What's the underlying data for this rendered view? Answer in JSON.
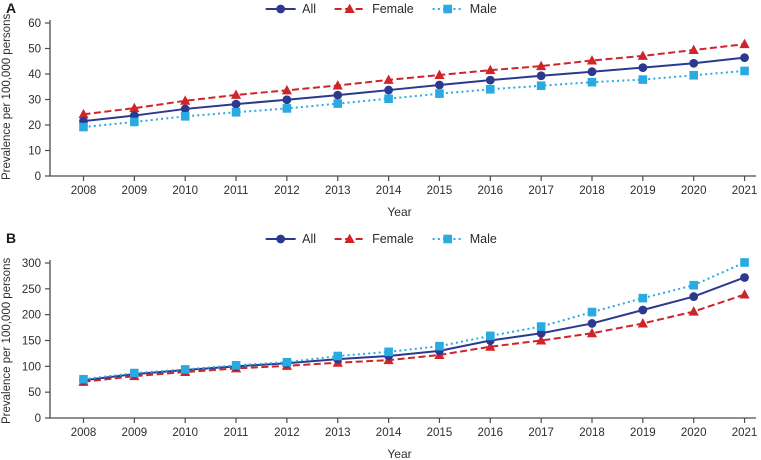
{
  "figure_colors": {
    "axis": "#4c4c4e",
    "tick_text": "#2e2e30",
    "background": "#ffffff"
  },
  "chart_data": [
    {
      "panel": "A",
      "type": "line",
      "title": "",
      "xlabel": "Year",
      "ylabel": "Prevalence per 100,000 persons",
      "categories": [
        "2008",
        "2009",
        "2010",
        "2011",
        "2012",
        "2013",
        "2014",
        "2015",
        "2016",
        "2017",
        "2018",
        "2019",
        "2020",
        "2021"
      ],
      "series": [
        {
          "name": "All",
          "color": "#2b3a8e",
          "line": "solid",
          "marker": "circle",
          "values": [
            21.5,
            23.7,
            26.3,
            28.2,
            29.9,
            31.7,
            33.7,
            35.7,
            37.6,
            39.3,
            40.9,
            42.5,
            44.2,
            46.4
          ]
        },
        {
          "name": "Female",
          "color": "#d0242b",
          "line": "dashed",
          "marker": "triangle",
          "values": [
            24.2,
            26.6,
            29.5,
            31.8,
            33.6,
            35.5,
            37.7,
            39.6,
            41.5,
            43.1,
            45.3,
            47.1,
            49.4,
            51.7
          ]
        },
        {
          "name": "Male",
          "color": "#29abe2",
          "line": "dotted",
          "marker": "square",
          "values": [
            19.2,
            21.2,
            23.4,
            25.0,
            26.5,
            28.4,
            30.3,
            32.3,
            34.0,
            35.4,
            36.8,
            37.8,
            39.5,
            41.2
          ]
        }
      ],
      "ylim": [
        0,
        60
      ],
      "yticks": [
        0,
        10,
        20,
        30,
        40,
        50,
        60
      ],
      "grid": false,
      "legend_position": "top-center"
    },
    {
      "panel": "B",
      "type": "line",
      "title": "",
      "xlabel": "Year",
      "ylabel": "Prevalence per 100,000 persons",
      "categories": [
        "2008",
        "2009",
        "2010",
        "2011",
        "2012",
        "2013",
        "2014",
        "2015",
        "2016",
        "2017",
        "2018",
        "2019",
        "2020",
        "2021"
      ],
      "series": [
        {
          "name": "All",
          "color": "#2b3a8e",
          "line": "solid",
          "marker": "circle",
          "values": [
            73,
            85,
            93,
            100,
            106,
            114,
            120,
            130,
            150,
            164,
            183,
            209,
            235,
            272
          ]
        },
        {
          "name": "Female",
          "color": "#d0242b",
          "line": "dashed",
          "marker": "triangle",
          "values": [
            70,
            81,
            89,
            96,
            101,
            107,
            112,
            122,
            138,
            150,
            164,
            183,
            206,
            239
          ]
        },
        {
          "name": "Male",
          "color": "#29abe2",
          "line": "dotted",
          "marker": "square",
          "values": [
            75,
            87,
            94,
            102,
            108,
            120,
            128,
            139,
            159,
            177,
            205,
            232,
            257,
            301
          ]
        }
      ],
      "ylim": [
        0,
        300
      ],
      "yticks": [
        0,
        50,
        100,
        150,
        200,
        250,
        300
      ],
      "grid": false,
      "legend_position": "top-center"
    }
  ]
}
